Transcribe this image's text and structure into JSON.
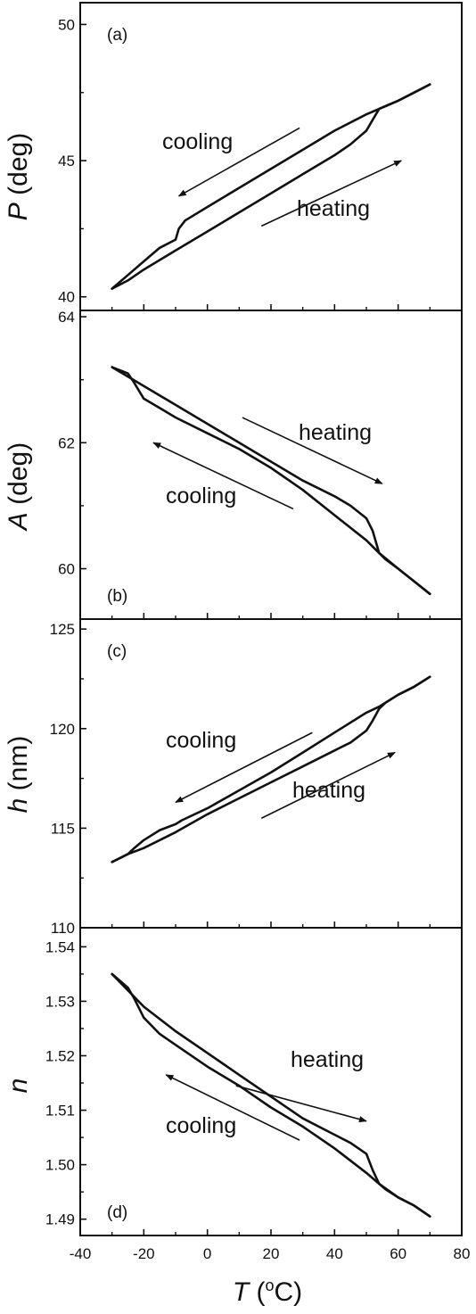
{
  "x_axis": {
    "label_symbol": "T",
    "label_unit_open": " (",
    "label_sup": "o",
    "label_unit_close": "C)",
    "ticks": [
      "-40",
      "-20",
      "0",
      "20",
      "40",
      "60",
      "80"
    ],
    "xlim": [
      -40,
      80
    ]
  },
  "colors": {
    "line": "#111111",
    "axis": "#111111",
    "background": "#ffffff"
  },
  "chart_data": [
    {
      "type": "line",
      "panel": "(a)",
      "ylabel_symbol": "P",
      "ylabel_unit": " (deg)",
      "ylim": [
        39.5,
        50.8
      ],
      "yticks": [
        40,
        45,
        50
      ],
      "ytick_labels": [
        "40",
        "45",
        "50"
      ],
      "series": [
        {
          "name": "heating",
          "x": [
            -30,
            -25,
            -20,
            -10,
            0,
            10,
            20,
            30,
            40,
            45,
            50,
            52,
            54,
            56,
            60,
            65,
            70
          ],
          "y": [
            40.3,
            40.6,
            41.0,
            41.7,
            42.4,
            43.1,
            43.8,
            44.5,
            45.2,
            45.6,
            46.1,
            46.5,
            46.9,
            47.0,
            47.2,
            47.5,
            47.8
          ]
        },
        {
          "name": "cooling",
          "x": [
            70,
            65,
            60,
            54,
            50,
            40,
            30,
            20,
            10,
            0,
            -7,
            -9,
            -10,
            -15,
            -20,
            -25,
            -30
          ],
          "y": [
            47.8,
            47.5,
            47.2,
            46.9,
            46.7,
            46.1,
            45.4,
            44.7,
            44.0,
            43.3,
            42.8,
            42.5,
            42.1,
            41.8,
            41.3,
            40.8,
            40.3
          ]
        }
      ],
      "annotations": [
        {
          "text": "cooling",
          "arrow_from": [
            29,
            46.2
          ],
          "arrow_to": [
            -9,
            43.7
          ]
        },
        {
          "text": "heating",
          "arrow_from": [
            17,
            42.6
          ],
          "arrow_to": [
            61,
            45.0
          ]
        }
      ]
    },
    {
      "type": "line",
      "panel": "(b)",
      "ylabel_symbol": "A",
      "ylabel_unit": " (deg)",
      "ylim": [
        59.2,
        64.1
      ],
      "yticks": [
        60,
        62,
        64
      ],
      "ytick_labels": [
        "60",
        "62",
        "64"
      ],
      "series": [
        {
          "name": "heating",
          "x": [
            -30,
            -25,
            -20,
            -10,
            0,
            10,
            20,
            30,
            40,
            45,
            50,
            52,
            54,
            56,
            60,
            65,
            70
          ],
          "y": [
            63.2,
            63.05,
            62.9,
            62.6,
            62.3,
            62.0,
            61.7,
            61.4,
            61.15,
            61.0,
            60.8,
            60.6,
            60.25,
            60.15,
            60.0,
            59.8,
            59.6
          ]
        },
        {
          "name": "cooling",
          "x": [
            70,
            65,
            60,
            54,
            50,
            40,
            30,
            20,
            10,
            0,
            -10,
            -15,
            -20,
            -23,
            -25,
            -30
          ],
          "y": [
            59.6,
            59.8,
            60.0,
            60.25,
            60.45,
            60.85,
            61.25,
            61.6,
            61.9,
            62.15,
            62.4,
            62.55,
            62.7,
            62.95,
            63.1,
            63.2
          ]
        }
      ],
      "annotations": [
        {
          "text": "heating",
          "arrow_from": [
            11,
            62.4
          ],
          "arrow_to": [
            55,
            61.35
          ]
        },
        {
          "text": "cooling",
          "arrow_from": [
            27,
            60.95
          ],
          "arrow_to": [
            -17,
            62.0
          ]
        }
      ]
    },
    {
      "type": "line",
      "panel": "(c)",
      "ylabel_symbol": "h",
      "ylabel_unit": " (nm)",
      "ylim": [
        110,
        125.5
      ],
      "yticks": [
        110,
        115,
        120,
        125
      ],
      "ytick_labels": [
        "110",
        "115",
        "120",
        "125"
      ],
      "series": [
        {
          "name": "heating",
          "x": [
            -30,
            -25,
            -20,
            -10,
            0,
            10,
            20,
            30,
            40,
            45,
            50,
            52,
            54,
            56,
            60,
            65,
            70
          ],
          "y": [
            113.3,
            113.7,
            114.0,
            114.8,
            115.7,
            116.5,
            117.3,
            118.1,
            118.9,
            119.3,
            119.9,
            120.4,
            121.0,
            121.3,
            121.7,
            122.1,
            122.6
          ]
        },
        {
          "name": "cooling",
          "x": [
            70,
            65,
            60,
            54,
            50,
            40,
            30,
            20,
            10,
            0,
            -8,
            -10,
            -15,
            -20,
            -23,
            -25,
            -30
          ],
          "y": [
            122.6,
            122.1,
            121.7,
            121.1,
            120.8,
            119.8,
            118.8,
            117.8,
            116.9,
            116.0,
            115.4,
            115.2,
            114.9,
            114.4,
            114.0,
            113.7,
            113.3
          ]
        }
      ],
      "annotations": [
        {
          "text": "cooling",
          "arrow_from": [
            33,
            119.8
          ],
          "arrow_to": [
            -10,
            116.3
          ]
        },
        {
          "text": "heating",
          "arrow_from": [
            17,
            115.5
          ],
          "arrow_to": [
            59,
            118.8
          ]
        }
      ]
    },
    {
      "type": "line",
      "panel": "(d)",
      "ylabel_symbol": "n",
      "ylabel_unit": "",
      "ylim": [
        1.487,
        1.5435
      ],
      "yticks": [
        1.49,
        1.5,
        1.51,
        1.52,
        1.53,
        1.54
      ],
      "ytick_labels": [
        "1.49",
        "1.50",
        "1.51",
        "1.52",
        "1.53",
        "1.54"
      ],
      "series": [
        {
          "name": "heating",
          "x": [
            -30,
            -25,
            -20,
            -10,
            0,
            10,
            20,
            30,
            40,
            45,
            50,
            52,
            54,
            56,
            60,
            65,
            70
          ],
          "y": [
            1.535,
            1.532,
            1.529,
            1.5245,
            1.5205,
            1.5165,
            1.5125,
            1.5085,
            1.5055,
            1.504,
            1.502,
            1.499,
            1.4965,
            1.4955,
            1.494,
            1.4925,
            1.4905
          ]
        },
        {
          "name": "cooling",
          "x": [
            70,
            65,
            60,
            54,
            50,
            40,
            30,
            20,
            10,
            0,
            -10,
            -15,
            -20,
            -23,
            -25,
            -30
          ],
          "y": [
            1.4905,
            1.4925,
            1.494,
            1.4965,
            1.4985,
            1.503,
            1.507,
            1.5105,
            1.5145,
            1.518,
            1.522,
            1.524,
            1.527,
            1.5305,
            1.5325,
            1.535
          ]
        }
      ],
      "annotations": [
        {
          "text": "heating",
          "arrow_from": [
            9,
            1.5145
          ],
          "arrow_to": [
            50,
            1.508
          ]
        },
        {
          "text": "cooling",
          "arrow_from": [
            29,
            1.5045
          ],
          "arrow_to": [
            -13,
            1.5165
          ]
        }
      ]
    }
  ]
}
